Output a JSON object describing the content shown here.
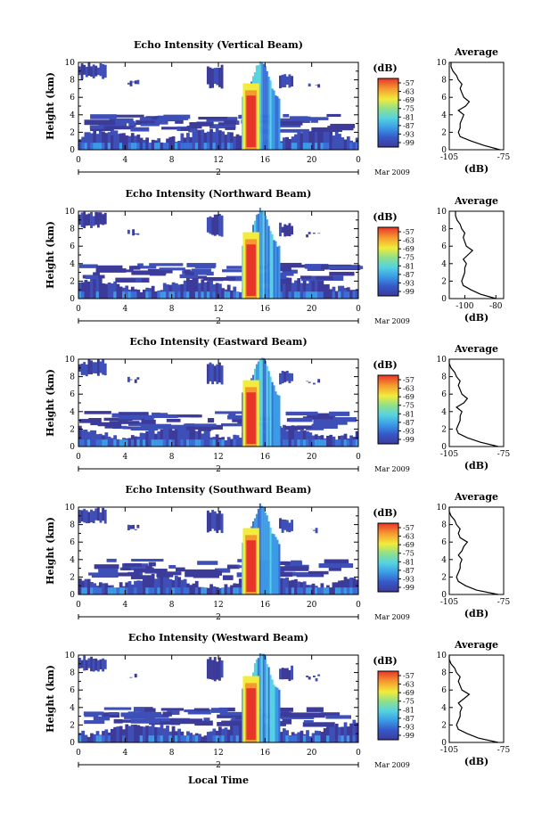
{
  "figure": {
    "xlabel": "Local Time",
    "date_label": "Mar 2009",
    "day_label": "2",
    "colorbar_title": "(dB)",
    "profile_title": "Average",
    "profile_unit": "(dB)"
  },
  "chart_data": [
    {
      "type": "heatmap",
      "title": "Echo Intensity (Vertical Beam)",
      "ylabel": "Height (km)",
      "xlim": [
        0,
        24
      ],
      "ylim": [
        0,
        10
      ],
      "x_ticks": [
        "0",
        "4",
        "8",
        "12",
        "16",
        "20",
        "0"
      ],
      "y_ticks": [
        "0",
        "2",
        "4",
        "6",
        "8",
        "10"
      ],
      "colorbar_ticks": [
        "-57",
        "-63",
        "-69",
        "-75",
        "-81",
        "-87",
        "-93",
        "-99"
      ],
      "profile": {
        "xlim": [
          -105,
          -75
        ],
        "x_ticks": [
          "-105",
          "-75"
        ],
        "heights": [
          0,
          0.5,
          1,
          1.5,
          2,
          2.5,
          3,
          3.5,
          4,
          4.5,
          5,
          5.5,
          6,
          6.5,
          7,
          7.5,
          8,
          8.5,
          9,
          9.5,
          10
        ],
        "values": [
          -77,
          -86,
          -93,
          -99,
          -100,
          -99,
          -99,
          -98,
          -97,
          -100,
          -96,
          -94,
          -97,
          -98,
          -99,
          -98,
          -100,
          -101,
          -103,
          -104,
          -104
        ]
      }
    },
    {
      "type": "heatmap",
      "title": "Echo Intensity (Northward Beam)",
      "ylabel": "Height (km)",
      "xlim": [
        0,
        24
      ],
      "ylim": [
        0,
        10
      ],
      "x_ticks": [
        "0",
        "4",
        "8",
        "12",
        "16",
        "20",
        "0"
      ],
      "y_ticks": [
        "0",
        "2",
        "4",
        "6",
        "8",
        "10"
      ],
      "colorbar_ticks": [
        "-57",
        "-63",
        "-69",
        "-75",
        "-81",
        "-87",
        "-93",
        "-99"
      ],
      "profile": {
        "xlim": [
          -110,
          -75
        ],
        "x_ticks": [
          "-100",
          "-80"
        ],
        "heights": [
          0,
          0.5,
          1,
          1.5,
          2,
          2.5,
          3,
          3.5,
          4,
          4.5,
          5,
          5.5,
          6,
          6.5,
          7,
          7.5,
          8,
          8.5,
          9,
          9.5,
          10
        ],
        "values": [
          -80,
          -90,
          -96,
          -101,
          -102,
          -101,
          -100,
          -100,
          -99,
          -101,
          -98,
          -95,
          -99,
          -100,
          -101,
          -100,
          -102,
          -103,
          -105,
          -106,
          -106
        ]
      }
    },
    {
      "type": "heatmap",
      "title": "Echo Intensity (Eastward Beam)",
      "ylabel": "Height (km)",
      "xlim": [
        0,
        24
      ],
      "ylim": [
        0,
        10
      ],
      "x_ticks": [
        "0",
        "4",
        "8",
        "12",
        "16",
        "20",
        "0"
      ],
      "y_ticks": [
        "0",
        "2",
        "4",
        "6",
        "8",
        "10"
      ],
      "colorbar_ticks": [
        "-57",
        "-63",
        "-69",
        "-75",
        "-81",
        "-87",
        "-93",
        "-99"
      ],
      "profile": {
        "xlim": [
          -105,
          -75
        ],
        "x_ticks": [
          "-105",
          "-75"
        ],
        "heights": [
          0,
          0.5,
          1,
          1.5,
          2,
          2.5,
          3,
          3.5,
          4,
          4.5,
          5,
          5.5,
          6,
          6.5,
          7,
          7.5,
          8,
          8.5,
          9,
          9.5,
          10
        ],
        "values": [
          -78,
          -88,
          -95,
          -100,
          -101,
          -100,
          -99,
          -99,
          -98,
          -101,
          -97,
          -95,
          -98,
          -99,
          -100,
          -99,
          -101,
          -102,
          -104,
          -105,
          -105
        ]
      }
    },
    {
      "type": "heatmap",
      "title": "Echo Intensity (Southward Beam)",
      "ylabel": "Height (km)",
      "xlim": [
        0,
        24
      ],
      "ylim": [
        0,
        10
      ],
      "x_ticks": [
        "0",
        "4",
        "8",
        "12",
        "16",
        "20",
        "0"
      ],
      "y_ticks": [
        "0",
        "2",
        "4",
        "6",
        "8",
        "10"
      ],
      "colorbar_ticks": [
        "-57",
        "-63",
        "-69",
        "-75",
        "-81",
        "-87",
        "-93",
        "-99"
      ],
      "profile": {
        "xlim": [
          -105,
          -75
        ],
        "x_ticks": [
          "-105",
          "-75"
        ],
        "heights": [
          0,
          0.5,
          1,
          1.5,
          2,
          2.5,
          3,
          3.5,
          4,
          4.5,
          5,
          5.5,
          6,
          6.5,
          7,
          7.5,
          8,
          8.5,
          9,
          9.5,
          10
        ],
        "values": [
          -78,
          -90,
          -96,
          -100,
          -101,
          -100,
          -99,
          -99,
          -98,
          -100,
          -98,
          -97,
          -95,
          -99,
          -100,
          -99,
          -101,
          -102,
          -104,
          -105,
          -105
        ]
      }
    },
    {
      "type": "heatmap",
      "title": "Echo Intensity (Westward Beam)",
      "ylabel": "Height (km)",
      "xlim": [
        0,
        24
      ],
      "ylim": [
        0,
        10
      ],
      "x_ticks": [
        "0",
        "4",
        "8",
        "12",
        "16",
        "20",
        "0"
      ],
      "y_ticks": [
        "0",
        "2",
        "4",
        "6",
        "8",
        "10"
      ],
      "colorbar_ticks": [
        "-57",
        "-63",
        "-69",
        "-75",
        "-81",
        "-87",
        "-93",
        "-99"
      ],
      "profile": {
        "xlim": [
          -105,
          -75
        ],
        "x_ticks": [
          "-105",
          "-75"
        ],
        "heights": [
          0,
          0.5,
          1,
          1.5,
          2,
          2.5,
          3,
          3.5,
          4,
          4.5,
          5,
          5.5,
          6,
          6.5,
          7,
          7.5,
          8,
          8.5,
          9,
          9.5,
          10
        ],
        "values": [
          -78,
          -89,
          -95,
          -100,
          -101,
          -100,
          -99,
          -99,
          -98,
          -100,
          -97,
          -94,
          -98,
          -99,
          -100,
          -99,
          -101,
          -102,
          -104,
          -105,
          -105
        ]
      }
    }
  ]
}
